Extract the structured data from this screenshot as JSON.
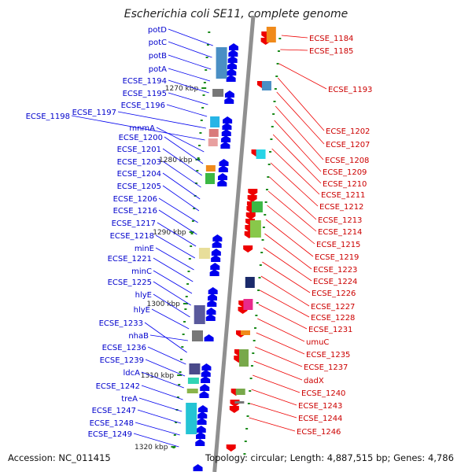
{
  "title": "Escherichia coli SE11, complete genome",
  "footer": {
    "accession": "Accession: NC_011415",
    "topology": "Topology: circular; Length: 4,887,515 bp; Genes: 4,786"
  },
  "kbp_labels": [
    "1270 kbp",
    "1280 kbp",
    "1290 kbp",
    "1300 kbp",
    "1310 kbp",
    "1320 kbp"
  ],
  "left_genes": [
    "potD",
    "potC",
    "potB",
    "potA",
    "ECSE_1194",
    "ECSE_1195",
    "ECSE_1196",
    "ECSE_1197",
    "ECSE_1198",
    "mnmA",
    "ECSE_1200",
    "ECSE_1201",
    "ECSE_1203",
    "ECSE_1204",
    "ECSE_1205",
    "ECSE_1206",
    "ECSE_1216",
    "ECSE_1217",
    "ECSE_1218",
    "minE",
    "ECSE_1221",
    "minC",
    "ECSE_1225",
    "hlyE",
    "hlyE",
    "nhaB",
    "ECSE_1233",
    "ECSE_1236",
    "ECSE_1239",
    "ldcA",
    "ECSE_1242",
    "treA",
    "ECSE_1247",
    "ECSE_1248",
    "ECSE_1249"
  ],
  "right_genes": [
    "ECSE_1184",
    "ECSE_1185",
    "ECSE_1193",
    "ECSE_1202",
    "ECSE_1207",
    "ECSE_1208",
    "ECSE_1209",
    "ECSE_1210",
    "ECSE_1211",
    "ECSE_1212",
    "ECSE_1213",
    "ECSE_1214",
    "ECSE_1215",
    "ECSE_1219",
    "ECSE_1223",
    "ECSE_1224",
    "ECSE_1226",
    "ECSE_1227",
    "ECSE_1228",
    "ECSE_1231",
    "umuC",
    "ECSE_1235",
    "ECSE_1237",
    "dadX",
    "ECSE_1240",
    "ECSE_1243",
    "ECSE_1244",
    "ECSE_1246"
  ],
  "colors": {
    "forward_strand": "#0000ee",
    "reverse_strand": "#ee0000",
    "backbone": "#909090",
    "tick": "#1a8a1a"
  }
}
